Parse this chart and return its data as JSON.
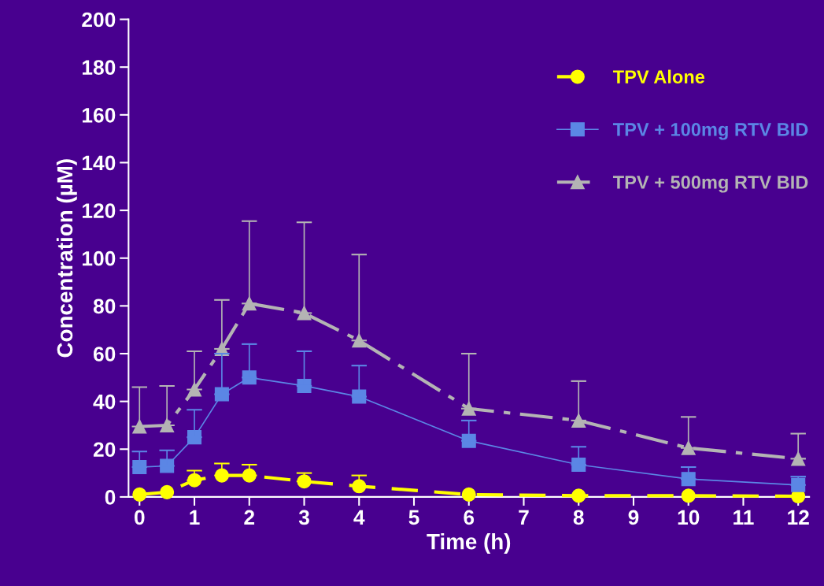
{
  "chart_data": {
    "type": "line",
    "xlabel": "Time (h)",
    "ylabel": "Concentration (µM)",
    "x": [
      0,
      0.5,
      1,
      1.5,
      2,
      3,
      4,
      6,
      8,
      10,
      12
    ],
    "xlim": [
      -0.2,
      12.2
    ],
    "xticks": [
      0,
      1,
      2,
      3,
      4,
      5,
      6,
      7,
      8,
      9,
      10,
      11,
      12
    ],
    "ylim": [
      0,
      200
    ],
    "yticks": [
      0,
      20,
      40,
      60,
      80,
      100,
      120,
      140,
      160,
      180,
      200
    ],
    "grid": false,
    "legend": "top right",
    "series": [
      {
        "name": "TPV Alone",
        "color": "#ffff00",
        "marker": "circle",
        "line_style": "dashed",
        "values": [
          1,
          2,
          7,
          9,
          9,
          6.5,
          4.5,
          1,
          0.5,
          0.5,
          0.3
        ],
        "errors": [
          null,
          null,
          [
            7,
            11
          ],
          [
            9,
            14
          ],
          [
            9,
            13.5
          ],
          [
            6.5,
            10
          ],
          [
            4.5,
            9
          ],
          null,
          null,
          null,
          null
        ]
      },
      {
        "name": "TPV + 100mg RTV BID",
        "color": "#5b86e5",
        "marker": "square",
        "line_style": "solid",
        "values": [
          12.5,
          13,
          25,
          43,
          50,
          46.5,
          42,
          23.5,
          13.5,
          7.5,
          5
        ],
        "errors": [
          [
            12.5,
            19
          ],
          [
            13,
            19.5
          ],
          [
            25,
            36.5
          ],
          [
            43,
            60
          ],
          [
            50,
            64
          ],
          [
            46.5,
            61
          ],
          [
            42,
            55
          ],
          [
            23.5,
            32
          ],
          [
            13.5,
            21
          ],
          [
            7.5,
            12.5
          ],
          [
            5,
            8.5
          ]
        ]
      },
      {
        "name": "TPV + 500mg RTV BID",
        "color": "#b4b4b4",
        "marker": "triangle",
        "line_style": "dashdot",
        "values": [
          29.5,
          30,
          45,
          62,
          81,
          77,
          65.5,
          37,
          32,
          20.5,
          16
        ],
        "errors": [
          [
            29.5,
            46
          ],
          [
            30,
            46.5
          ],
          [
            45,
            61
          ],
          [
            62,
            82.5
          ],
          [
            81,
            115.5
          ],
          [
            77,
            115
          ],
          [
            65.5,
            101.5
          ],
          [
            37,
            60
          ],
          [
            32,
            48.5
          ],
          [
            20.5,
            33.5
          ],
          [
            16,
            26.5
          ]
        ]
      }
    ]
  }
}
